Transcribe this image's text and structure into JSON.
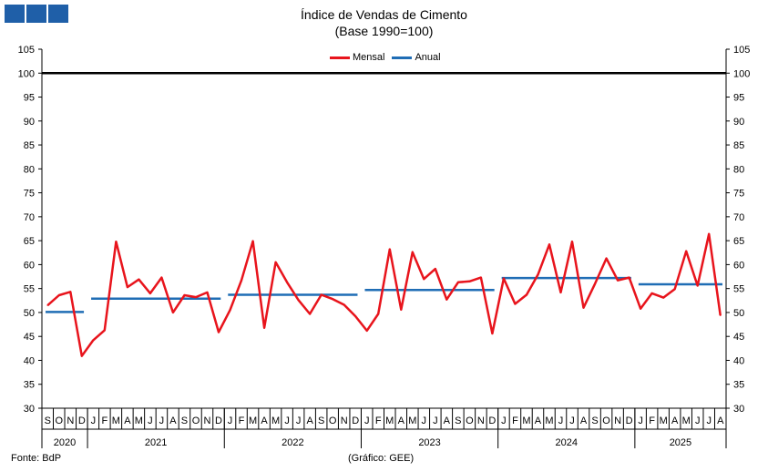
{
  "logo": {
    "icon": "bdp-logo-blocks",
    "color": "#1f5fa8"
  },
  "chart_data": {
    "type": "line",
    "title": "Índice de Vendas de Cimento",
    "subtitle": "(Base 1990=100)",
    "ylim": [
      30,
      105
    ],
    "yticks": [
      30,
      35,
      40,
      45,
      50,
      55,
      60,
      65,
      70,
      75,
      80,
      85,
      90,
      95,
      100,
      105
    ],
    "reference_line": {
      "value": 100,
      "color": "#000000"
    },
    "month_labels": [
      "S",
      "O",
      "N",
      "D",
      "J",
      "F",
      "M",
      "A",
      "M",
      "J",
      "J",
      "A",
      "S",
      "O",
      "N",
      "D",
      "J",
      "F",
      "M",
      "A",
      "M",
      "J",
      "J",
      "A",
      "S",
      "O",
      "N",
      "D",
      "J",
      "F",
      "M",
      "A",
      "M",
      "J",
      "J",
      "A",
      "S",
      "O",
      "N",
      "D",
      "J",
      "F",
      "M",
      "A",
      "M",
      "J",
      "J",
      "A",
      "S",
      "O",
      "N",
      "D",
      "J",
      "F",
      "M",
      "A",
      "M",
      "J",
      "J",
      "A"
    ],
    "years": [
      {
        "label": "2020",
        "months": 4
      },
      {
        "label": "2021",
        "months": 12
      },
      {
        "label": "2022",
        "months": 12
      },
      {
        "label": "2023",
        "months": 12
      },
      {
        "label": "2024",
        "months": 12
      },
      {
        "label": "2025",
        "months": 8
      }
    ],
    "series": [
      {
        "name": "Mensal",
        "color": "#e8141c",
        "values": [
          51.5,
          53.6,
          54.3,
          40.9,
          44.2,
          46.3,
          64.8,
          55.3,
          56.9,
          54.0,
          57.3,
          50.0,
          53.6,
          53.2,
          54.2,
          45.9,
          50.5,
          56.7,
          64.9,
          46.8,
          60.5,
          56.3,
          52.6,
          49.7,
          53.7,
          52.8,
          51.6,
          49.2,
          46.2,
          49.7,
          63.2,
          50.6,
          62.6,
          57.0,
          59.1,
          52.7,
          56.3,
          56.5,
          57.3,
          45.6,
          57.1,
          51.8,
          53.7,
          57.9,
          64.2,
          54.2,
          64.8,
          51.0,
          56.0,
          61.3,
          56.7,
          57.3,
          50.8,
          54.0,
          53.1,
          54.9,
          62.8,
          55.6,
          66.4,
          49.4
        ]
      },
      {
        "name": "Anual",
        "color": "#1f6db5",
        "segments": [
          {
            "year": "2020",
            "value": 50.1
          },
          {
            "year": "2021",
            "value": 52.9
          },
          {
            "year": "2022",
            "value": 53.7
          },
          {
            "year": "2023",
            "value": 54.7
          },
          {
            "year": "2024",
            "value": 57.2
          },
          {
            "year": "2025",
            "value": 55.9
          }
        ]
      }
    ],
    "legend": [
      "Mensal",
      "Anual"
    ],
    "legend_position": "top-center"
  },
  "footer": {
    "source": "Fonte: BdP",
    "credit": "(Gráfico: GEE)"
  }
}
